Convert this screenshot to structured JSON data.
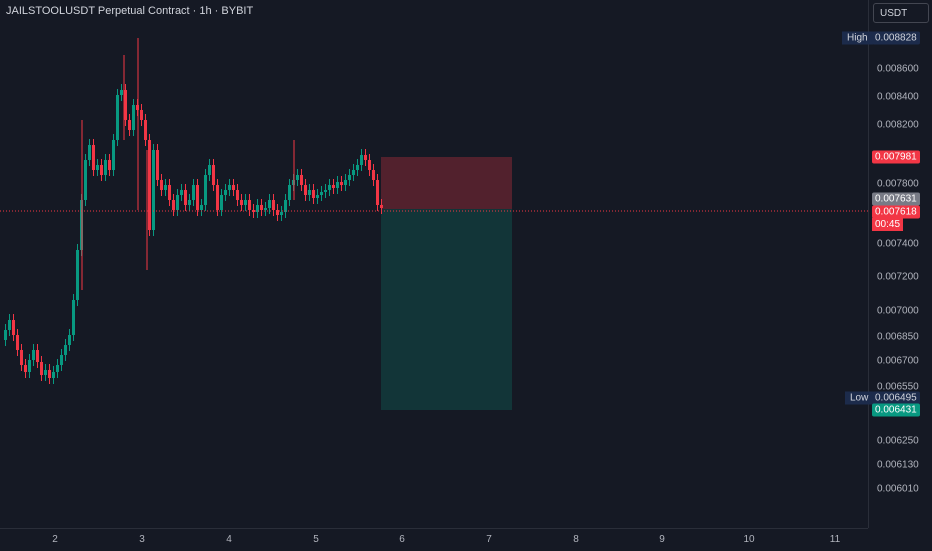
{
  "header": {
    "title": "JAILSTOOLUSDT Perpetual Contract · 1h · BYBIT",
    "currency_button": "USDT"
  },
  "colors": {
    "background": "#151924",
    "up_candle": "#089981",
    "down_candle": "#f23645",
    "stop_zone": "rgba(242,54,69,0.28)",
    "target_zone": "rgba(8,153,129,0.22)"
  },
  "price_axis": {
    "ticks": [
      "0.008600",
      "0.008400",
      "0.008200",
      "0.007800",
      "0.007400",
      "0.007200",
      "0.007000",
      "0.006850",
      "0.006700",
      "0.006550",
      "0.006250",
      "0.006130",
      "0.006010"
    ]
  },
  "time_axis": {
    "labels": [
      "2",
      "3",
      "4",
      "5",
      "6",
      "7",
      "8",
      "9",
      "10",
      "11"
    ]
  },
  "markers": {
    "high_label": "High",
    "high_value": "0.008828",
    "low_label": "Low",
    "low_value": "0.006495",
    "stop_value": "0.007981",
    "prev_close_value": "0.007631",
    "current_value": "0.007618",
    "countdown": "00:45",
    "target_value": "0.006431"
  }
}
